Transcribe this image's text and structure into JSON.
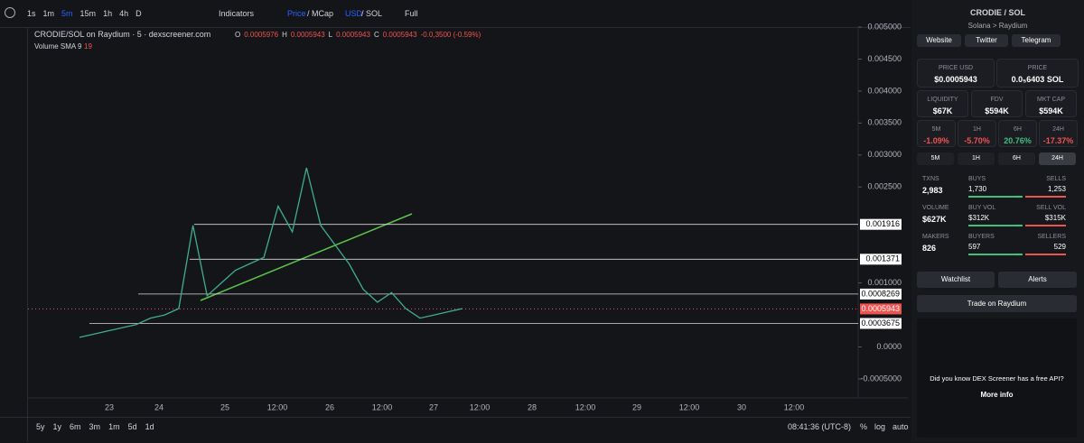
{
  "toolbar": {
    "intervals": [
      "1s",
      "1m",
      "5m",
      "15m",
      "1h",
      "4h",
      "D"
    ],
    "indicators": "Indicators",
    "price": "Price",
    "mcap": "/ MCap",
    "usd": "USD",
    "sol": "/ SOL",
    "full": "Full"
  },
  "chart": {
    "title": "CRODIE/SOL on Raydium · 5 · dexscreener.com",
    "ohlc": [
      {
        "k": "O",
        "v": "0.0005976"
      },
      {
        "k": "H",
        "v": "0.0005943"
      },
      {
        "k": "L",
        "v": "0.0005943"
      },
      {
        "k": "C",
        "v": "0.0005943"
      }
    ],
    "change": "-0.0,3500 (-0.59%)",
    "volume_label": "Volume SMA 9",
    "volume_value": "19",
    "line_color": "#3fae8c",
    "ylim": [
      -0.0005,
      0.005
    ],
    "yticks": [
      {
        "value": 0.005,
        "label": "0.005000"
      },
      {
        "value": 0.0045,
        "label": "0.004500"
      },
      {
        "value": 0.004,
        "label": "0.004000"
      },
      {
        "value": 0.0035,
        "label": "0.003500"
      },
      {
        "value": 0.003,
        "label": "0.003000"
      },
      {
        "value": 0.0025,
        "label": "0.002500"
      },
      {
        "value": 0.001,
        "label": "0.001000"
      },
      {
        "value": 0,
        "label": "0.0000"
      },
      {
        "value": -0.0005,
        "label": "-0.0005000"
      }
    ],
    "levels": [
      0.001916,
      0.001371,
      0.0008269,
      0.0003675
    ],
    "current_price": 0.0005943,
    "price_values": [
      0.00015,
      0.0002,
      0.00025,
      0.0003,
      0.00035,
      0.00045,
      0.0005,
      0.0006,
      0.0019,
      0.0008,
      0.001,
      0.0012,
      0.0013,
      0.0014,
      0.0022,
      0.0018,
      0.0028,
      0.0019,
      0.0016,
      0.0013,
      0.0009,
      0.0007,
      0.00085,
      0.0006,
      0.00045,
      0.0005,
      0.00055,
      0.0006
    ],
    "time_labels": [
      "23",
      "24",
      "25",
      "12:00",
      "26",
      "12:00",
      "27",
      "12:00",
      "28",
      "12:00",
      "29",
      "12:00",
      "30",
      "12:00"
    ]
  },
  "bottom": {
    "ranges": [
      "5y",
      "1y",
      "6m",
      "3m",
      "1m",
      "5d",
      "1d"
    ],
    "clock": "08:41:36 (UTC-8)",
    "scale_opts": [
      "%",
      "log",
      "auto"
    ]
  },
  "sidebar": {
    "token": "CRODIE",
    "quote": "/ SOL",
    "chain": "Solana",
    "sep": ">",
    "dex": "Raydium",
    "links": [
      "Website",
      "Twitter",
      "Telegram"
    ],
    "price_usd": {
      "label": "PRICE USD",
      "value": "$0.0005943"
    },
    "price": {
      "label": "PRICE",
      "value": "0.0₅6403 SOL"
    },
    "metrics": [
      {
        "label": "LIQUIDITY",
        "value": "$67K"
      },
      {
        "label": "FDV",
        "value": "$594K"
      },
      {
        "label": "MKT CAP",
        "value": "$594K"
      }
    ],
    "changes": [
      {
        "label": "5M",
        "value": "-1.09%"
      },
      {
        "label": "1H",
        "value": "-5.70%"
      },
      {
        "label": "6H",
        "value": "20.76%"
      },
      {
        "label": "24H",
        "value": "-17.37%"
      }
    ],
    "tabs": [
      "5M",
      "1H",
      "6H",
      "24H"
    ],
    "stats": [
      {
        "main": {
          "label": "TXNS",
          "value": "2,983"
        },
        "left": {
          "label": "BUYS",
          "value": "1,730"
        },
        "right": {
          "label": "SELLS",
          "value": "1,253"
        }
      },
      {
        "main": {
          "label": "VOLUME",
          "value": "$627K"
        },
        "left": {
          "label": "BUY VOL",
          "value": "$312K"
        },
        "right": {
          "label": "SELL VOL",
          "value": "$315K"
        }
      },
      {
        "main": {
          "label": "MAKERS",
          "value": "826"
        },
        "left": {
          "label": "BUYERS",
          "value": "597"
        },
        "right": {
          "label": "SELLERS",
          "value": "529"
        }
      }
    ],
    "watchlist": "Watchlist",
    "alerts": "Alerts",
    "trade": "Trade on Raydium",
    "api_text": "Did you know DEX Screener has a free API?",
    "api_link": "More info"
  }
}
